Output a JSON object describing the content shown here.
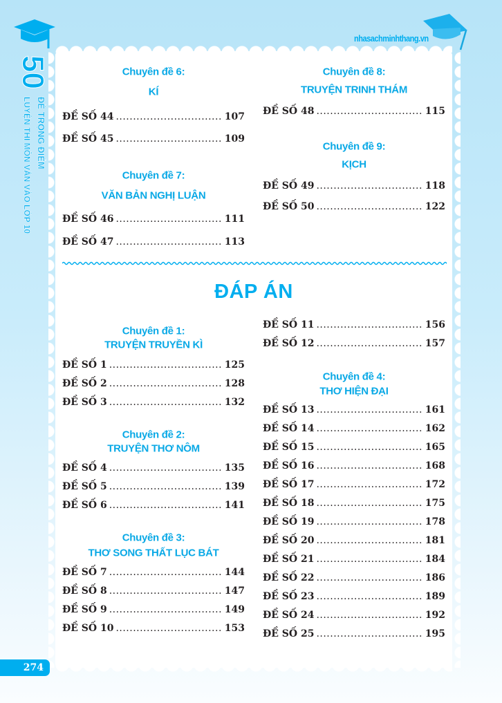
{
  "header": {
    "website": "nhasachminhthang.vn"
  },
  "spine": {
    "number": "50",
    "line1": "ĐỀ TRỌNG ĐIỂM",
    "line2": "LUYỆN THI MÔN VĂN VÀO LỚP 10"
  },
  "page_number": "274",
  "answers_title": "ĐÁP ÁN",
  "toc_top": {
    "left": [
      {
        "topic": "Chuyên đề 6:",
        "name": "KÍ",
        "entries": [
          {
            "label": "ĐỀ SỐ 44",
            "page": "107"
          },
          {
            "label": "ĐỀ SỐ 45",
            "page": "109"
          }
        ]
      },
      {
        "topic": "Chuyên đề 7:",
        "name": "VĂN BẢN NGHỊ LUẬN",
        "entries": [
          {
            "label": "ĐỀ SỐ 46",
            "page": "111"
          },
          {
            "label": "ĐỀ SỐ 47",
            "page": "113"
          }
        ]
      }
    ],
    "right": [
      {
        "topic": "Chuyên đề 8:",
        "name": "TRUYỆN TRINH THÁM",
        "entries": [
          {
            "label": "ĐỀ SỐ 48",
            "page": "115"
          }
        ]
      },
      {
        "topic": "Chuyên đề 9:",
        "name": "KỊCH",
        "entries": [
          {
            "label": "ĐỀ SỐ 49",
            "page": "118"
          },
          {
            "label": "ĐỀ SỐ 50",
            "page": "122"
          }
        ]
      }
    ]
  },
  "toc_answers": {
    "left": [
      {
        "topic": "Chuyên đề 1:",
        "name": "TRUYỆN TRUYỀN KÌ",
        "entries": [
          {
            "label": "ĐỀ SỐ 1",
            "page": "125"
          },
          {
            "label": "ĐỀ SỐ 2",
            "page": "128"
          },
          {
            "label": "ĐỀ SỐ 3",
            "page": "132"
          }
        ]
      },
      {
        "topic": "Chuyên đề 2:",
        "name": "TRUYỆN THƠ NÔM",
        "entries": [
          {
            "label": "ĐỀ SỐ 4",
            "page": "135"
          },
          {
            "label": "ĐỀ SỐ 5",
            "page": "139"
          },
          {
            "label": "ĐỀ SỐ 6",
            "page": "141"
          }
        ]
      },
      {
        "topic": "Chuyên đề 3:",
        "name": "THƠ SONG THẤT LỤC BÁT",
        "entries": [
          {
            "label": "ĐỀ SỐ 7",
            "page": "144"
          },
          {
            "label": "ĐỀ SỐ 8",
            "page": "147"
          },
          {
            "label": "ĐỀ SỐ 9",
            "page": "149"
          },
          {
            "label": "ĐỀ SỐ 10",
            "page": "153"
          }
        ]
      }
    ],
    "right": [
      {
        "entries": [
          {
            "label": "ĐỀ SỐ 11",
            "page": "156"
          },
          {
            "label": "ĐỀ SỐ 12",
            "page": "157"
          }
        ]
      },
      {
        "topic": "Chuyên đề 4:",
        "name": "THƠ HIỆN ĐẠI",
        "entries": [
          {
            "label": "ĐỀ SỐ 13",
            "page": "161"
          },
          {
            "label": "ĐỀ SỐ 14",
            "page": "162"
          },
          {
            "label": "ĐỀ SỐ 15",
            "page": "165"
          },
          {
            "label": "ĐỀ SỐ 16",
            "page": "168"
          },
          {
            "label": "ĐỀ SỐ 17",
            "page": "172"
          },
          {
            "label": "ĐỀ SỐ 18",
            "page": "175"
          },
          {
            "label": "ĐỀ SỐ 19",
            "page": "178"
          },
          {
            "label": "ĐỀ SỐ 20",
            "page": "181"
          },
          {
            "label": "ĐỀ SỐ 21",
            "page": "184"
          },
          {
            "label": "ĐỀ SỐ 22",
            "page": "186"
          },
          {
            "label": "ĐỀ SỐ 23",
            "page": "189"
          },
          {
            "label": "ĐỀ SỐ 24",
            "page": "192"
          },
          {
            "label": "ĐỀ SỐ 25",
            "page": "195"
          }
        ]
      }
    ]
  },
  "colors": {
    "accent": "#00aeef",
    "text": "#231f20"
  }
}
